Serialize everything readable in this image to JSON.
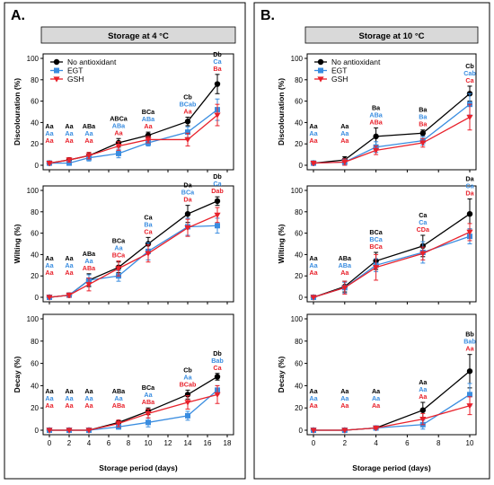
{
  "panel_labels": [
    "A.",
    "B."
  ],
  "colors": {
    "no_antioxidant": "#000000",
    "egt": "#3a8de0",
    "gsh": "#e8212b",
    "frame": "#000000"
  },
  "legend_labels": [
    "No antioxidant",
    "EGT",
    "GSH"
  ],
  "chart_data": [
    {
      "panel": "A.",
      "title": "Storage at 4 °C",
      "type": "line",
      "xlabel": "Storage period (days)",
      "xlim": [
        0,
        18
      ],
      "xticks": [
        "0",
        "2",
        "4",
        "6",
        "8",
        "10",
        "12",
        "14",
        "16",
        "18"
      ],
      "legend": "top-left",
      "subplots": [
        {
          "ylabel": "Discolouration (%)",
          "ylim": [
            0,
            100
          ],
          "yticks": [
            "0",
            "20",
            "40",
            "60",
            "80",
            "100"
          ],
          "x": [
            0,
            2,
            4,
            7,
            10,
            14,
            17
          ],
          "series": [
            {
              "name": "No antioxidant",
              "y": [
                2,
                5,
                9,
                21,
                28,
                41,
                76
              ],
              "err": [
                1,
                2,
                3,
                4,
                3,
                4,
                9
              ],
              "letters": [
                "Aa",
                "Aa",
                "ABa",
                "ABCa",
                "BCa",
                "Cb",
                "Db"
              ]
            },
            {
              "name": "EGT",
              "y": [
                2,
                2,
                7,
                11,
                21,
                31,
                52
              ],
              "err": [
                1,
                2,
                3,
                4,
                3,
                5,
                10
              ],
              "letters": [
                "Aa",
                "Aa",
                "Aa",
                "ABa",
                "ABa",
                "BCab",
                "Ca"
              ]
            },
            {
              "name": "GSH",
              "y": [
                2,
                5,
                9,
                18,
                24,
                24,
                47
              ],
              "err": [
                1,
                2,
                3,
                4,
                3,
                6,
                10
              ],
              "letters": [
                "Aa",
                "Aa",
                "Aa",
                "Aa",
                "Aa",
                "Aa",
                "Ba"
              ]
            }
          ]
        },
        {
          "ylabel": "Wilting (%)",
          "ylim": [
            0,
            100
          ],
          "yticks": [
            "0",
            "20",
            "40",
            "60",
            "80",
            "100"
          ],
          "x": [
            0,
            2,
            4,
            7,
            10,
            14,
            17
          ],
          "series": [
            {
              "name": "No antioxidant",
              "y": [
                0,
                2,
                16,
                28,
                50,
                78,
                90
              ],
              "err": [
                1,
                2,
                6,
                5,
                6,
                8,
                4
              ],
              "letters": [
                "Aa",
                "Aa",
                "ABa",
                "BCa",
                "Ca",
                "Da",
                "Db"
              ]
            },
            {
              "name": "EGT",
              "y": [
                0,
                2,
                16,
                20,
                43,
                66,
                67
              ],
              "err": [
                1,
                2,
                5,
                5,
                8,
                8,
                7
              ],
              "letters": [
                "Aa",
                "Aa",
                "Aa",
                "Aa",
                "Ba",
                "BCa",
                "Ca"
              ]
            },
            {
              "name": "GSH",
              "y": [
                0,
                2,
                12,
                27,
                41,
                65,
                77
              ],
              "err": [
                1,
                2,
                6,
                7,
                8,
                8,
                7
              ],
              "letters": [
                "Aa",
                "Aa",
                "ABa",
                "BCa",
                "Ca",
                "Da",
                "Dab"
              ]
            }
          ]
        },
        {
          "ylabel": "Decay (%)",
          "ylim": [
            0,
            100
          ],
          "yticks": [
            "0",
            "20",
            "40",
            "60",
            "80",
            "100"
          ],
          "x": [
            0,
            2,
            4,
            7,
            10,
            14,
            17
          ],
          "series": [
            {
              "name": "No antioxidant",
              "y": [
                0,
                0,
                0,
                7,
                17,
                32,
                48
              ],
              "err": [
                0,
                0,
                0,
                2,
                3,
                4,
                3
              ],
              "letters": [
                "Aa",
                "Aa",
                "Aa",
                "ABa",
                "BCa",
                "Cb",
                "Db"
              ]
            },
            {
              "name": "EGT",
              "y": [
                0,
                0,
                0,
                3,
                7,
                13,
                36
              ],
              "err": [
                0,
                0,
                0,
                2,
                4,
                4,
                4
              ],
              "letters": [
                "Aa",
                "Aa",
                "Aa",
                "Aa",
                "Aa",
                "Aa",
                "Bab"
              ]
            },
            {
              "name": "GSH",
              "y": [
                0,
                0,
                0,
                6,
                15,
                25,
                32
              ],
              "err": [
                0,
                0,
                0,
                3,
                4,
                6,
                8
              ],
              "letters": [
                "Aa",
                "Aa",
                "Aa",
                "ABa",
                "ABa",
                "BCab",
                "Ca"
              ]
            }
          ]
        }
      ]
    },
    {
      "panel": "B.",
      "title": "Storage at 10 °C",
      "type": "line",
      "xlabel": "Storage period (days)",
      "xlim": [
        0,
        10
      ],
      "xticks": [
        "0",
        "2",
        "4",
        "6",
        "8",
        "10"
      ],
      "legend": "top-left",
      "subplots": [
        {
          "ylabel": "Discolouration (%)",
          "ylim": [
            0,
            100
          ],
          "yticks": [
            "0",
            "20",
            "40",
            "60",
            "80",
            "100"
          ],
          "x": [
            0,
            2,
            4,
            7,
            10
          ],
          "series": [
            {
              "name": "No antioxidant",
              "y": [
                2,
                5,
                27,
                30,
                67
              ],
              "err": [
                1,
                3,
                8,
                3,
                7
              ],
              "letters": [
                "Aa",
                "Aa",
                "Ba",
                "Ba",
                "Cb"
              ]
            },
            {
              "name": "EGT",
              "y": [
                2,
                3,
                17,
                23,
                57
              ],
              "err": [
                1,
                3,
                5,
                4,
                10
              ],
              "letters": [
                "Aa",
                "Aa",
                "ABa",
                "Ba",
                "Cab"
              ]
            },
            {
              "name": "GSH",
              "y": [
                2,
                3,
                14,
                21,
                45
              ],
              "err": [
                1,
                3,
                4,
                4,
                12
              ],
              "letters": [
                "Aa",
                "Aa",
                "ABa",
                "Ba",
                "Ca"
              ]
            }
          ]
        },
        {
          "ylabel": "Wilting (%)",
          "ylim": [
            0,
            100
          ],
          "yticks": [
            "0",
            "20",
            "40",
            "60",
            "80",
            "100"
          ],
          "x": [
            0,
            2,
            4,
            7,
            10
          ],
          "series": [
            {
              "name": "No antioxidant",
              "y": [
                0,
                10,
                34,
                48,
                78
              ],
              "err": [
                1,
                5,
                8,
                10,
                14
              ],
              "letters": [
                "Aa",
                "ABa",
                "BCa",
                "Ca",
                "Da"
              ]
            },
            {
              "name": "EGT",
              "y": [
                0,
                9,
                30,
                42,
                57
              ],
              "err": [
                1,
                5,
                6,
                10,
                7
              ],
              "letters": [
                "Aa",
                "ABa",
                "BCa",
                "Ca",
                "Ca"
              ]
            },
            {
              "name": "GSH",
              "y": [
                0,
                9,
                28,
                41,
                61
              ],
              "err": [
                1,
                6,
                12,
                6,
                8
              ],
              "letters": [
                "Aa",
                "Aa",
                "BCa",
                "CDa",
                "Da"
              ]
            }
          ]
        },
        {
          "ylabel": "Decay (%)",
          "ylim": [
            0,
            100
          ],
          "yticks": [
            "0",
            "20",
            "40",
            "60",
            "80",
            "100"
          ],
          "x": [
            0,
            2,
            4,
            7,
            10
          ],
          "series": [
            {
              "name": "No antioxidant",
              "y": [
                0,
                0,
                2,
                18,
                53
              ],
              "err": [
                0,
                0,
                1,
                7,
                15
              ],
              "letters": [
                "Aa",
                "Aa",
                "Aa",
                "Aa",
                "Bb"
              ]
            },
            {
              "name": "EGT",
              "y": [
                0,
                0,
                2,
                5,
                32
              ],
              "err": [
                0,
                0,
                1,
                4,
                10
              ],
              "letters": [
                "Aa",
                "Aa",
                "Aa",
                "Aa",
                "Bab"
              ]
            },
            {
              "name": "GSH",
              "y": [
                0,
                0,
                2,
                10,
                22
              ],
              "err": [
                0,
                0,
                1,
                5,
                8
              ],
              "letters": [
                "Aa",
                "Aa",
                "Aa",
                "Aa",
                "Aa"
              ]
            }
          ]
        }
      ]
    }
  ]
}
